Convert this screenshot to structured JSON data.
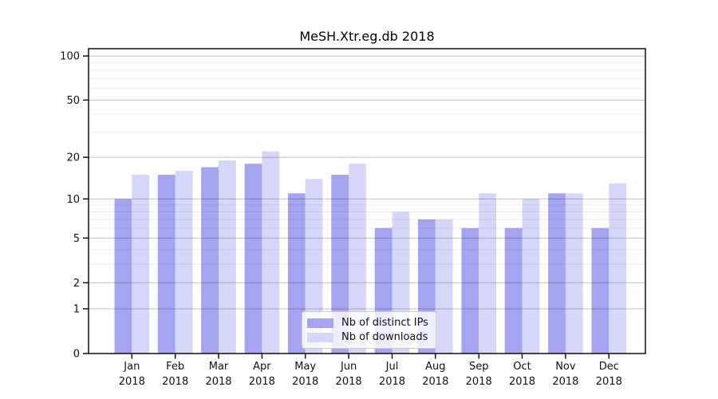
{
  "chart_data": {
    "type": "bar",
    "title": "MeSH.Xtr.eg.db 2018",
    "categories": [
      "Jan",
      "Feb",
      "Mar",
      "Apr",
      "May",
      "Jun",
      "Jul",
      "Aug",
      "Sep",
      "Oct",
      "Nov",
      "Dec"
    ],
    "year_label": "2018",
    "series": [
      {
        "name": "Nb of distinct IPs",
        "color": "#a4a4f0",
        "values": [
          10,
          15,
          17,
          18,
          11,
          15,
          6,
          7,
          6,
          6,
          11,
          6
        ]
      },
      {
        "name": "Nb of downloads",
        "color": "#d6d6f8",
        "values": [
          15,
          16,
          19,
          22,
          14,
          18,
          8,
          7,
          11,
          10,
          11,
          13
        ]
      }
    ],
    "xlabel": "",
    "ylabel": "",
    "y_axis": {
      "scale": "log1p",
      "ticks": [
        0,
        1,
        2,
        5,
        10,
        20,
        50,
        100
      ],
      "minor_gridlines": [
        3,
        4,
        6,
        7,
        8,
        9,
        30,
        40,
        60,
        70,
        80,
        90
      ],
      "ylim": [
        0,
        115
      ]
    },
    "grid": true,
    "legend_position": "lower center",
    "colors": {
      "axis": "#000000",
      "tick_label": "#111111",
      "major_grid_alpha": 0.24,
      "minor_grid_alpha": 0.07
    }
  }
}
